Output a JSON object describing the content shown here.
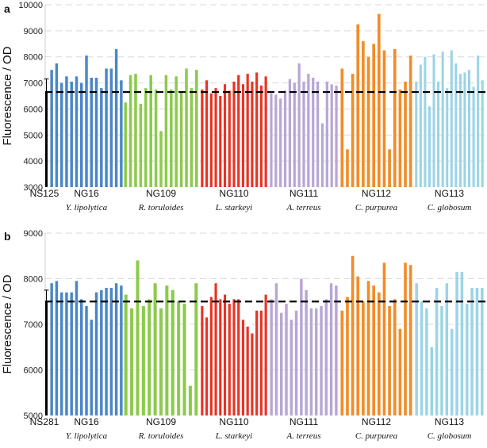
{
  "chart_data": [
    {
      "type": "bar",
      "panel_label": "a",
      "ylabel": "Fluorescence / OD",
      "ylim": [
        3000,
        10000
      ],
      "yticks": [
        3000,
        4000,
        5000,
        6000,
        7000,
        8000,
        9000,
        10000
      ],
      "grid": true,
      "reference": {
        "name": "NS125",
        "value": 6650,
        "error": [
          5800,
          7150
        ],
        "line": "dashed"
      },
      "groups": [
        {
          "name": "NG16",
          "species": "Y. lipolytica",
          "color": "#4a86c8",
          "values": [
            7500,
            7750,
            7000,
            7250,
            7050,
            7250,
            7000,
            8050,
            7200,
            7200,
            6800,
            7550,
            7550,
            8300,
            7100
          ]
        },
        {
          "name": "NG109",
          "species": "R. toruloides",
          "color": "#8cca4c",
          "values": [
            6250,
            7300,
            7350,
            6200,
            6800,
            7300,
            6750,
            5150,
            7300,
            6750,
            7250,
            6650,
            7550,
            6800,
            7500
          ]
        },
        {
          "name": "NG110",
          "species": "L. starkeyi",
          "color": "#ea3223",
          "values": [
            6750,
            7100,
            6600,
            6800,
            6500,
            6950,
            6700,
            7050,
            7300,
            6950,
            7350,
            7050,
            7400,
            6900,
            7250
          ]
        },
        {
          "name": "NG111",
          "species": "A. terreus",
          "color": "#b8a6d4",
          "values": [
            6600,
            6550,
            6400,
            6700,
            7150,
            7000,
            7750,
            7050,
            7350,
            7200,
            7050,
            5450,
            7050,
            6950,
            6900
          ]
        },
        {
          "name": "NG112",
          "species": "C. purpurea",
          "color": "#f28c28",
          "values": [
            7550,
            4450,
            7350,
            9250,
            8600,
            8000,
            8500,
            9650,
            8250,
            4450,
            8300,
            6750,
            7050,
            8050
          ]
        },
        {
          "name": "NG113",
          "species": "C. globosum",
          "color": "#9bd4e6",
          "values": [
            7050,
            7700,
            8000,
            6100,
            8100,
            7050,
            8200,
            6800,
            8250,
            7750,
            7350,
            7400,
            7500,
            6850,
            8050,
            7100
          ]
        }
      ]
    },
    {
      "type": "bar",
      "panel_label": "b",
      "ylabel": "Fluorescence / OD",
      "ylim": [
        5000,
        9000
      ],
      "yticks": [
        5000,
        6000,
        7000,
        8000,
        9000
      ],
      "grid": true,
      "reference": {
        "name": "NS281",
        "value": 7500,
        "error": [
          5050,
          7750
        ],
        "line": "dashed"
      },
      "groups": [
        {
          "name": "NG16",
          "species": "Y. lipolytica",
          "color": "#4a86c8",
          "values": [
            7900,
            7950,
            7700,
            7700,
            7700,
            7950,
            7550,
            7400,
            7100,
            7700,
            7750,
            7800,
            7800,
            7900,
            7850
          ]
        },
        {
          "name": "NG109",
          "species": "R. toruloides",
          "color": "#8cca4c",
          "values": [
            7650,
            7350,
            8400,
            7400,
            7550,
            7900,
            7350,
            7850,
            7750,
            7500,
            7450,
            5650,
            7900
          ]
        },
        {
          "name": "NG110",
          "species": "L. starkeyi",
          "color": "#ea3223",
          "values": [
            7400,
            7150,
            7600,
            7900,
            7550,
            7650,
            7450,
            7550,
            7550,
            7100,
            6950,
            6800,
            7300,
            7300,
            7650
          ]
        },
        {
          "name": "NG111",
          "species": "A. terreus",
          "color": "#b8a6d4",
          "values": [
            7550,
            7900,
            7250,
            7450,
            7100,
            7300,
            8000,
            7750,
            7350,
            7350,
            7400,
            7550,
            7900,
            7850
          ]
        },
        {
          "name": "NG112",
          "species": "C. purpurea",
          "color": "#f28c28",
          "values": [
            7300,
            7600,
            8500,
            8050,
            7500,
            7950,
            7850,
            7700,
            8350,
            7400,
            7550,
            6900,
            8350,
            8300
          ]
        },
        {
          "name": "NG113",
          "species": "C. globosum",
          "color": "#9bd4e6",
          "values": [
            7900,
            7500,
            7350,
            6500,
            7800,
            7400,
            7900,
            6900,
            8150,
            8150,
            7450,
            7800,
            7800,
            7800
          ]
        }
      ]
    }
  ]
}
